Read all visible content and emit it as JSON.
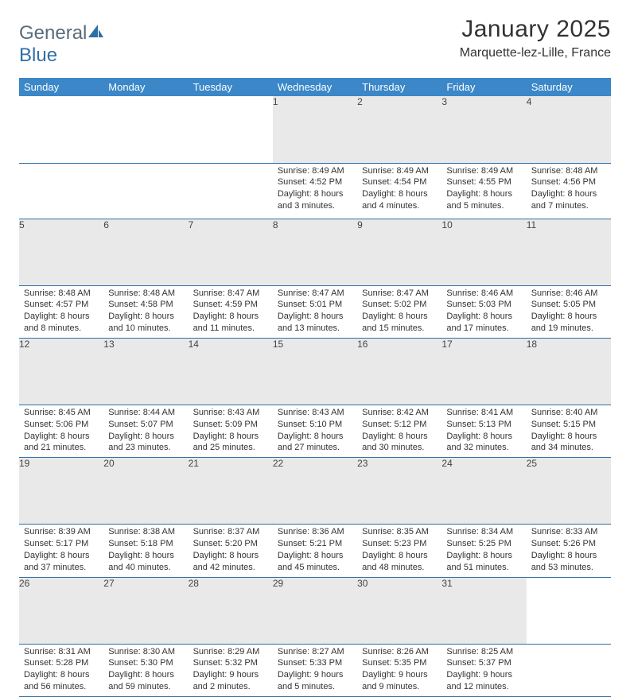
{
  "brand": {
    "g": "General",
    "b": "Blue"
  },
  "title": "January 2025",
  "location": "Marquette-lez-Lille, France",
  "colors": {
    "header_bg": "#3b87c8",
    "row_border": "#2f6fa7",
    "daynum_bg": "#e9e9e9",
    "text": "#333333",
    "logo_gray": "#5a6b7a",
    "logo_blue": "#2f6fa7"
  },
  "day_headers": [
    "Sunday",
    "Monday",
    "Tuesday",
    "Wednesday",
    "Thursday",
    "Friday",
    "Saturday"
  ],
  "weeks": [
    [
      {
        "n": "",
        "sr": "",
        "ss": "",
        "dl": ""
      },
      {
        "n": "",
        "sr": "",
        "ss": "",
        "dl": ""
      },
      {
        "n": "",
        "sr": "",
        "ss": "",
        "dl": ""
      },
      {
        "n": "1",
        "sr": "Sunrise: 8:49 AM",
        "ss": "Sunset: 4:52 PM",
        "dl": "Daylight: 8 hours and 3 minutes."
      },
      {
        "n": "2",
        "sr": "Sunrise: 8:49 AM",
        "ss": "Sunset: 4:54 PM",
        "dl": "Daylight: 8 hours and 4 minutes."
      },
      {
        "n": "3",
        "sr": "Sunrise: 8:49 AM",
        "ss": "Sunset: 4:55 PM",
        "dl": "Daylight: 8 hours and 5 minutes."
      },
      {
        "n": "4",
        "sr": "Sunrise: 8:48 AM",
        "ss": "Sunset: 4:56 PM",
        "dl": "Daylight: 8 hours and 7 minutes."
      }
    ],
    [
      {
        "n": "5",
        "sr": "Sunrise: 8:48 AM",
        "ss": "Sunset: 4:57 PM",
        "dl": "Daylight: 8 hours and 8 minutes."
      },
      {
        "n": "6",
        "sr": "Sunrise: 8:48 AM",
        "ss": "Sunset: 4:58 PM",
        "dl": "Daylight: 8 hours and 10 minutes."
      },
      {
        "n": "7",
        "sr": "Sunrise: 8:47 AM",
        "ss": "Sunset: 4:59 PM",
        "dl": "Daylight: 8 hours and 11 minutes."
      },
      {
        "n": "8",
        "sr": "Sunrise: 8:47 AM",
        "ss": "Sunset: 5:01 PM",
        "dl": "Daylight: 8 hours and 13 minutes."
      },
      {
        "n": "9",
        "sr": "Sunrise: 8:47 AM",
        "ss": "Sunset: 5:02 PM",
        "dl": "Daylight: 8 hours and 15 minutes."
      },
      {
        "n": "10",
        "sr": "Sunrise: 8:46 AM",
        "ss": "Sunset: 5:03 PM",
        "dl": "Daylight: 8 hours and 17 minutes."
      },
      {
        "n": "11",
        "sr": "Sunrise: 8:46 AM",
        "ss": "Sunset: 5:05 PM",
        "dl": "Daylight: 8 hours and 19 minutes."
      }
    ],
    [
      {
        "n": "12",
        "sr": "Sunrise: 8:45 AM",
        "ss": "Sunset: 5:06 PM",
        "dl": "Daylight: 8 hours and 21 minutes."
      },
      {
        "n": "13",
        "sr": "Sunrise: 8:44 AM",
        "ss": "Sunset: 5:07 PM",
        "dl": "Daylight: 8 hours and 23 minutes."
      },
      {
        "n": "14",
        "sr": "Sunrise: 8:43 AM",
        "ss": "Sunset: 5:09 PM",
        "dl": "Daylight: 8 hours and 25 minutes."
      },
      {
        "n": "15",
        "sr": "Sunrise: 8:43 AM",
        "ss": "Sunset: 5:10 PM",
        "dl": "Daylight: 8 hours and 27 minutes."
      },
      {
        "n": "16",
        "sr": "Sunrise: 8:42 AM",
        "ss": "Sunset: 5:12 PM",
        "dl": "Daylight: 8 hours and 30 minutes."
      },
      {
        "n": "17",
        "sr": "Sunrise: 8:41 AM",
        "ss": "Sunset: 5:13 PM",
        "dl": "Daylight: 8 hours and 32 minutes."
      },
      {
        "n": "18",
        "sr": "Sunrise: 8:40 AM",
        "ss": "Sunset: 5:15 PM",
        "dl": "Daylight: 8 hours and 34 minutes."
      }
    ],
    [
      {
        "n": "19",
        "sr": "Sunrise: 8:39 AM",
        "ss": "Sunset: 5:17 PM",
        "dl": "Daylight: 8 hours and 37 minutes."
      },
      {
        "n": "20",
        "sr": "Sunrise: 8:38 AM",
        "ss": "Sunset: 5:18 PM",
        "dl": "Daylight: 8 hours and 40 minutes."
      },
      {
        "n": "21",
        "sr": "Sunrise: 8:37 AM",
        "ss": "Sunset: 5:20 PM",
        "dl": "Daylight: 8 hours and 42 minutes."
      },
      {
        "n": "22",
        "sr": "Sunrise: 8:36 AM",
        "ss": "Sunset: 5:21 PM",
        "dl": "Daylight: 8 hours and 45 minutes."
      },
      {
        "n": "23",
        "sr": "Sunrise: 8:35 AM",
        "ss": "Sunset: 5:23 PM",
        "dl": "Daylight: 8 hours and 48 minutes."
      },
      {
        "n": "24",
        "sr": "Sunrise: 8:34 AM",
        "ss": "Sunset: 5:25 PM",
        "dl": "Daylight: 8 hours and 51 minutes."
      },
      {
        "n": "25",
        "sr": "Sunrise: 8:33 AM",
        "ss": "Sunset: 5:26 PM",
        "dl": "Daylight: 8 hours and 53 minutes."
      }
    ],
    [
      {
        "n": "26",
        "sr": "Sunrise: 8:31 AM",
        "ss": "Sunset: 5:28 PM",
        "dl": "Daylight: 8 hours and 56 minutes."
      },
      {
        "n": "27",
        "sr": "Sunrise: 8:30 AM",
        "ss": "Sunset: 5:30 PM",
        "dl": "Daylight: 8 hours and 59 minutes."
      },
      {
        "n": "28",
        "sr": "Sunrise: 8:29 AM",
        "ss": "Sunset: 5:32 PM",
        "dl": "Daylight: 9 hours and 2 minutes."
      },
      {
        "n": "29",
        "sr": "Sunrise: 8:27 AM",
        "ss": "Sunset: 5:33 PM",
        "dl": "Daylight: 9 hours and 5 minutes."
      },
      {
        "n": "30",
        "sr": "Sunrise: 8:26 AM",
        "ss": "Sunset: 5:35 PM",
        "dl": "Daylight: 9 hours and 9 minutes."
      },
      {
        "n": "31",
        "sr": "Sunrise: 8:25 AM",
        "ss": "Sunset: 5:37 PM",
        "dl": "Daylight: 9 hours and 12 minutes."
      },
      {
        "n": "",
        "sr": "",
        "ss": "",
        "dl": ""
      }
    ]
  ]
}
